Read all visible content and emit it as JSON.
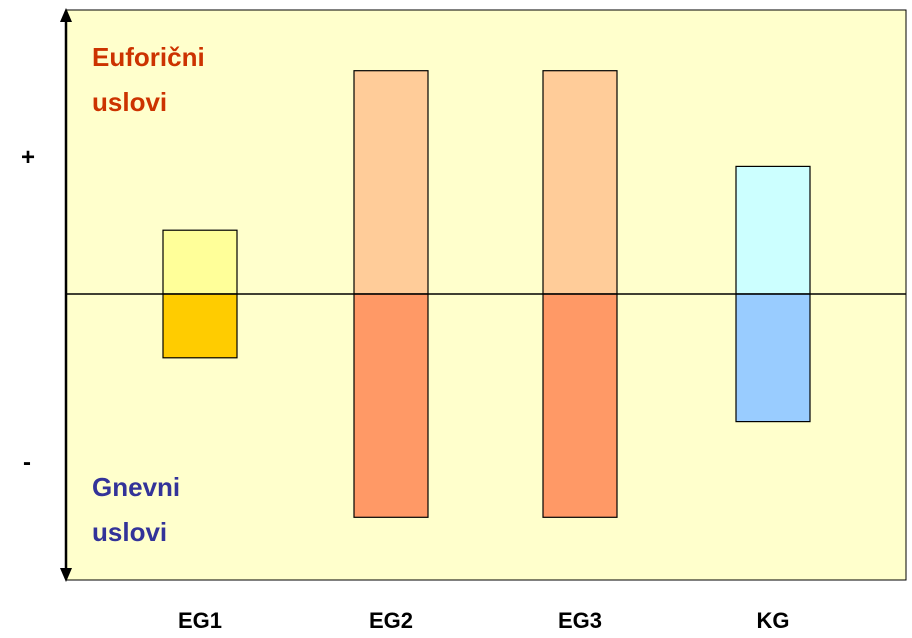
{
  "chart_data": {
    "type": "bar",
    "categories": [
      "EG1",
      "EG2",
      "EG3",
      "KG"
    ],
    "series": [
      {
        "name": "",
        "values": [
          1,
          3.5,
          3.5,
          2
        ]
      },
      {
        "name": "",
        "values": [
          -1,
          -3.5,
          -3.5,
          -2
        ]
      }
    ],
    "colors": {
      "positive": [
        "#ffff99",
        "#ffcc99",
        "#ffcc99",
        "#ccffff"
      ],
      "negative": [
        "#ffcc00",
        "#ff9966",
        "#ff9966",
        "#99ccff"
      ],
      "background": "#ffffcc",
      "positive_label": "#cc3300",
      "negative_label": "#333399"
    },
    "ylim": [
      -4.5,
      4.5
    ],
    "plus_sign": "+",
    "minus_sign": "-",
    "positive_label_lines": [
      "Euforični",
      "uslovi"
    ],
    "negative_label_lines": [
      "Gnevni",
      "uslovi"
    ]
  }
}
